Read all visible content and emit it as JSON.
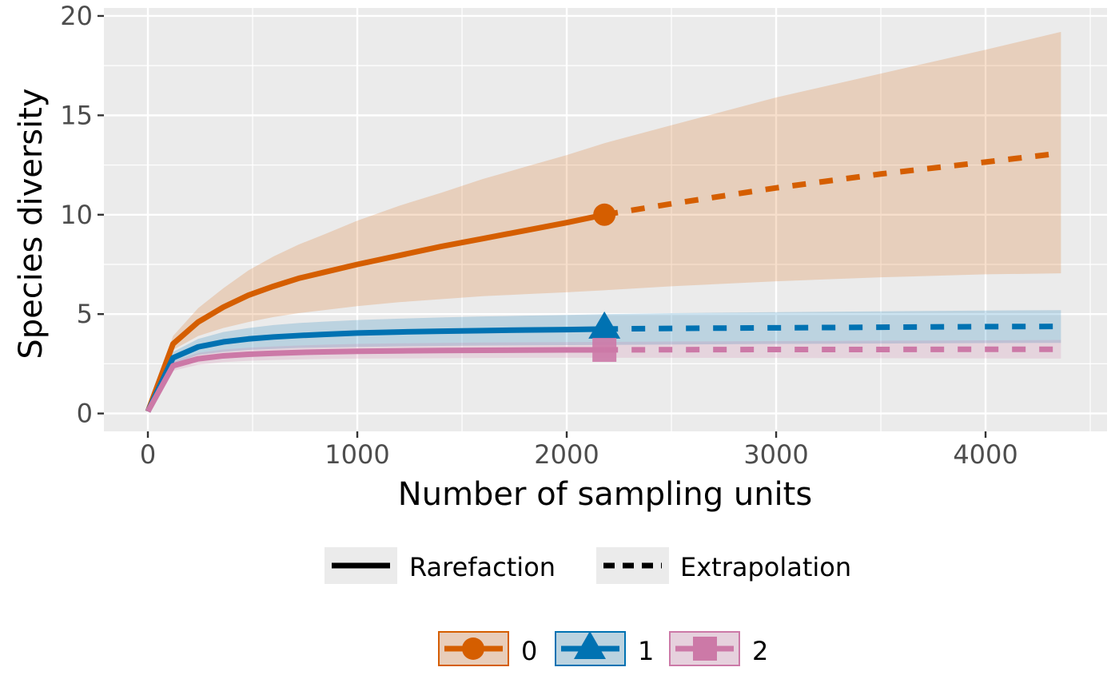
{
  "chart_data": {
    "type": "line",
    "xlabel": "Number of sampling units",
    "ylabel": "Species diversity",
    "xlim": [
      -210,
      4580
    ],
    "ylim": [
      -0.9,
      20.4
    ],
    "xticks": [
      0,
      1000,
      2000,
      3000,
      4000
    ],
    "xtick_labels": [
      "0",
      "1000",
      "2000",
      "3000",
      "4000"
    ],
    "yticks": [
      0,
      5,
      10,
      15,
      20
    ],
    "ytick_labels": [
      "0",
      "5",
      "10",
      "15",
      "20"
    ],
    "grid": true,
    "reference_sample_size": 2180,
    "series": [
      {
        "name": "0",
        "color": "#D55E00",
        "fill": "#E8CDBA",
        "marker": "circle",
        "rarefaction": {
          "x": [
            0,
            120,
            240,
            360,
            480,
            600,
            720,
            840,
            1000,
            1200,
            1400,
            1600,
            1800,
            2000,
            2180
          ],
          "y": [
            0.1,
            3.5,
            4.6,
            5.35,
            5.95,
            6.4,
            6.8,
            7.1,
            7.5,
            7.95,
            8.4,
            8.8,
            9.2,
            9.6,
            10.0
          ],
          "lower": [
            0.1,
            3.2,
            3.9,
            4.3,
            4.6,
            4.85,
            5.05,
            5.2,
            5.4,
            5.6,
            5.75,
            5.9,
            6.0,
            6.1,
            6.2
          ],
          "upper": [
            0.1,
            3.9,
            5.3,
            6.3,
            7.2,
            7.9,
            8.5,
            9.0,
            9.7,
            10.45,
            11.1,
            11.8,
            12.4,
            13.0,
            13.6
          ]
        },
        "extrapolation": {
          "x": [
            2180,
            2500,
            3000,
            3500,
            4000,
            4360
          ],
          "y": [
            10.0,
            10.55,
            11.35,
            12.05,
            12.65,
            13.1
          ],
          "lower": [
            6.2,
            6.4,
            6.65,
            6.85,
            7.0,
            7.05
          ],
          "upper": [
            13.6,
            14.5,
            15.9,
            17.1,
            18.3,
            19.2
          ]
        }
      },
      {
        "name": "1",
        "color": "#0072B2",
        "fill": "#BBD3E0",
        "marker": "triangle",
        "rarefaction": {
          "x": [
            0,
            120,
            240,
            360,
            480,
            600,
            720,
            840,
            1000,
            1200,
            1400,
            1600,
            1800,
            2000,
            2180
          ],
          "y": [
            0.1,
            2.8,
            3.35,
            3.6,
            3.75,
            3.85,
            3.92,
            3.98,
            4.05,
            4.1,
            4.14,
            4.17,
            4.2,
            4.22,
            4.25
          ],
          "lower": [
            0.1,
            2.5,
            2.95,
            3.1,
            3.2,
            3.25,
            3.3,
            3.32,
            3.35,
            3.38,
            3.4,
            3.42,
            3.43,
            3.44,
            3.45
          ],
          "upper": [
            0.1,
            3.1,
            3.75,
            4.1,
            4.3,
            4.45,
            4.55,
            4.62,
            4.7,
            4.77,
            4.83,
            4.88,
            4.92,
            4.96,
            5.0
          ]
        },
        "extrapolation": {
          "x": [
            2180,
            2500,
            3000,
            3500,
            4000,
            4360
          ],
          "y": [
            4.25,
            4.28,
            4.31,
            4.34,
            4.37,
            4.38
          ],
          "lower": [
            3.45,
            3.47,
            3.5,
            3.52,
            3.54,
            3.55
          ],
          "upper": [
            5.0,
            5.05,
            5.1,
            5.14,
            5.18,
            5.2
          ]
        }
      },
      {
        "name": "2",
        "color": "#CC79A7",
        "fill": "#E6D1DD",
        "marker": "square",
        "rarefaction": {
          "x": [
            0,
            120,
            240,
            360,
            480,
            600,
            720,
            840,
            1000,
            1200,
            1400,
            1600,
            1800,
            2000,
            2180
          ],
          "y": [
            0.1,
            2.4,
            2.75,
            2.9,
            2.98,
            3.03,
            3.07,
            3.1,
            3.13,
            3.15,
            3.17,
            3.18,
            3.19,
            3.2,
            3.2
          ],
          "lower": [
            0.1,
            2.15,
            2.45,
            2.58,
            2.65,
            2.69,
            2.72,
            2.74,
            2.76,
            2.77,
            2.78,
            2.79,
            2.8,
            2.8,
            2.8
          ],
          "upper": [
            0.1,
            2.65,
            3.05,
            3.22,
            3.31,
            3.37,
            3.42,
            3.46,
            3.5,
            3.53,
            3.55,
            3.57,
            3.58,
            3.59,
            3.6
          ]
        },
        "extrapolation": {
          "x": [
            2180,
            2500,
            3000,
            3500,
            4000,
            4360
          ],
          "y": [
            3.2,
            3.21,
            3.22,
            3.22,
            3.23,
            3.23
          ],
          "lower": [
            2.8,
            2.8,
            2.79,
            2.78,
            2.77,
            2.76
          ],
          "upper": [
            3.6,
            3.62,
            3.64,
            3.66,
            3.68,
            3.7
          ]
        }
      }
    ],
    "legend_linetype": {
      "position": "bottom",
      "entries": [
        {
          "label": "Rarefaction",
          "linetype": "solid"
        },
        {
          "label": "Extrapolation",
          "linetype": "dashed"
        }
      ]
    },
    "legend_group": {
      "position": "bottom",
      "entries": [
        "0",
        "1",
        "2"
      ]
    }
  }
}
